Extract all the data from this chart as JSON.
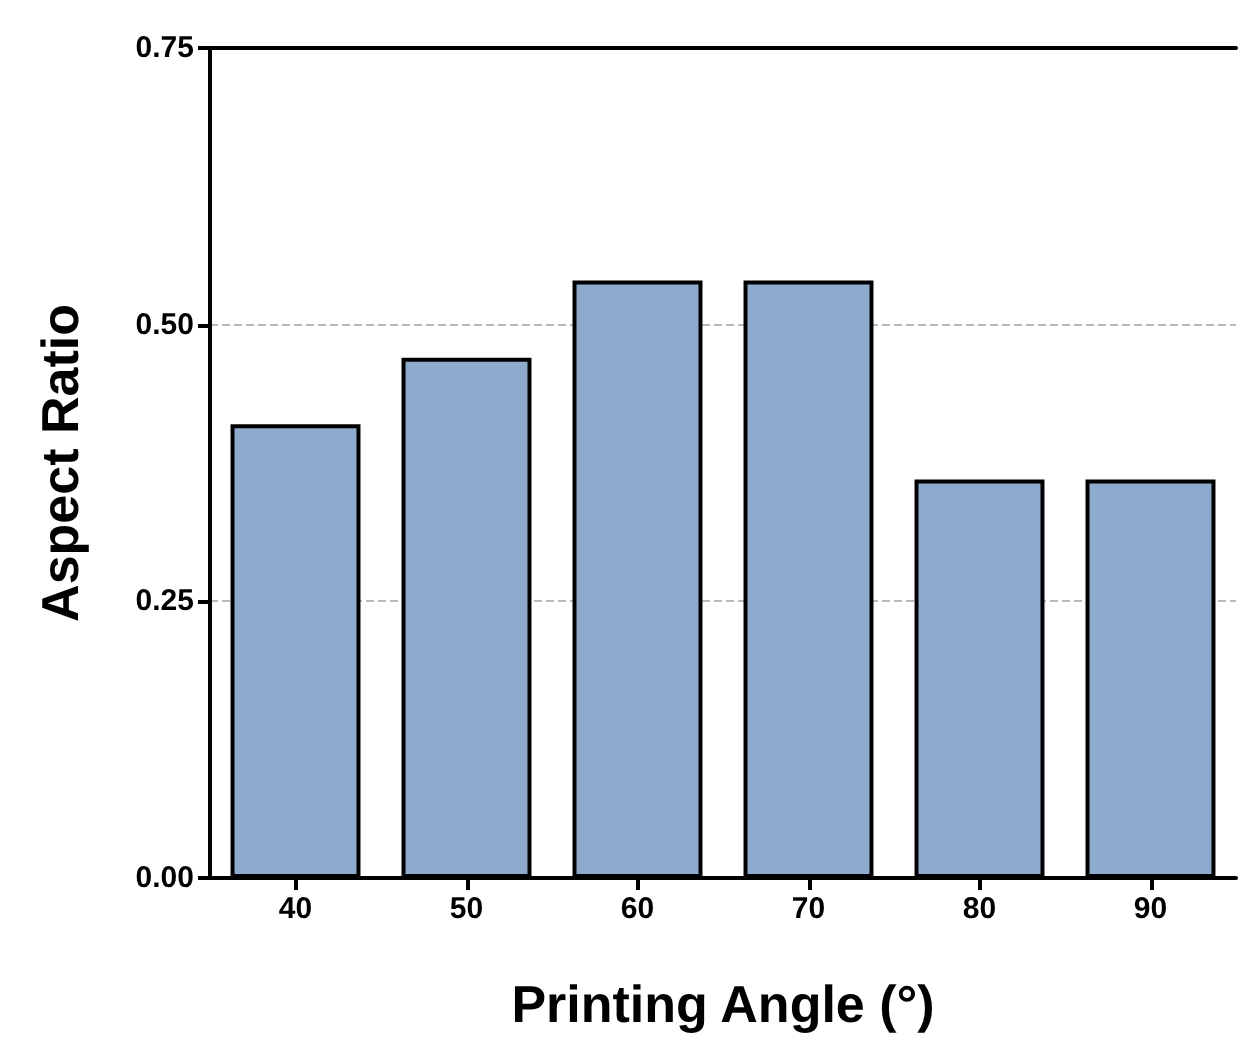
{
  "chart_data": {
    "type": "bar",
    "xlabel": "Printing Angle (°)",
    "ylabel": "Aspect Ratio",
    "categories": [
      "40",
      "50",
      "60",
      "70",
      "80",
      "90"
    ],
    "values": [
      0.41,
      0.47,
      0.54,
      0.54,
      0.36,
      0.36
    ],
    "color": "#8eaacd",
    "ylim": [
      0,
      0.75
    ],
    "yticks": [
      {
        "value": 0,
        "label": "0.00"
      },
      {
        "value": 0.25,
        "label": "0.25"
      },
      {
        "value": 0.5,
        "label": "0.50"
      },
      {
        "value": 0.75,
        "label": "0.75"
      }
    ],
    "grid": "y"
  }
}
